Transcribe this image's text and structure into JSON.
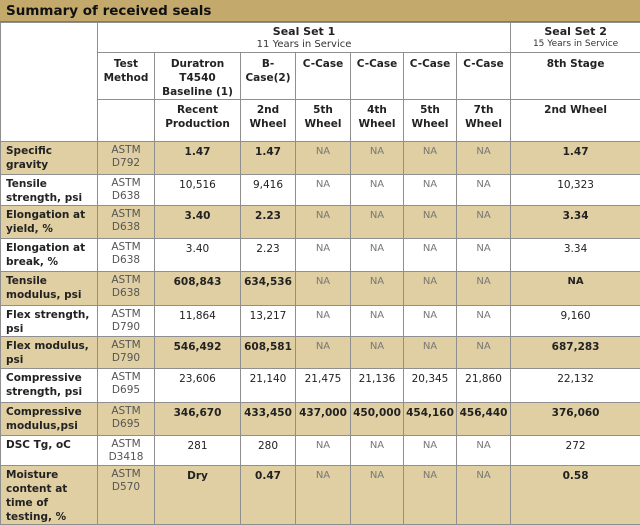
{
  "title": "Summary of received seals",
  "seal_set_1": {
    "name": "Seal Set 1",
    "sub": "11 Years in Service"
  },
  "seal_set_2": {
    "name": "Seal Set 2",
    "sub": "15 Years in Service"
  },
  "columns": [
    {
      "top": "Test Method",
      "bottom": ""
    },
    {
      "top": "Duratron T4540 Baseline (1)",
      "bottom": "Recent Production"
    },
    {
      "top": "B-Case(2)",
      "bottom": "2nd Wheel"
    },
    {
      "top": "C-Case",
      "bottom": "5th Wheel"
    },
    {
      "top": "C-Case",
      "bottom": "4th Wheel"
    },
    {
      "top": "C-Case",
      "bottom": "5th Wheel"
    },
    {
      "top": "C-Case",
      "bottom": "7th Wheel"
    },
    {
      "top": "8th Stage",
      "bottom": "2nd Wheel"
    }
  ],
  "rows": [
    {
      "label": "Specific gravity",
      "method": "ASTM D792",
      "values": [
        "1.47",
        "1.47",
        "NA",
        "NA",
        "NA",
        "NA",
        "1.47"
      ]
    },
    {
      "label": "Tensile strength, psi",
      "method": "ASTM D638",
      "values": [
        "10,516",
        "9,416",
        "NA",
        "NA",
        "NA",
        "NA",
        "10,323"
      ]
    },
    {
      "label": "Elongation at yield, %",
      "method": "ASTM D638",
      "values": [
        "3.40",
        "2.23",
        "NA",
        "NA",
        "NA",
        "NA",
        "3.34"
      ]
    },
    {
      "label": "Elongation at break, %",
      "method": "ASTM D638",
      "values": [
        "3.40",
        "2.23",
        "NA",
        "NA",
        "NA",
        "NA",
        "3.34"
      ]
    },
    {
      "label": "Tensile modulus, psi",
      "method": "ASTM D638",
      "values": [
        "608,843",
        "634,536",
        "NA",
        "NA",
        "NA",
        "NA",
        "NA"
      ]
    },
    {
      "label": "Flex strength, psi",
      "method": "ASTM D790",
      "values": [
        "11,864",
        "13,217",
        "NA",
        "NA",
        "NA",
        "NA",
        "9,160"
      ]
    },
    {
      "label": "Flex modulus, psi",
      "method": "ASTM D790",
      "values": [
        "546,492",
        "608,581",
        "NA",
        "NA",
        "NA",
        "NA",
        "687,283"
      ]
    },
    {
      "label": "Compressive strength, psi",
      "method": "ASTM D695",
      "values": [
        "23,606",
        "21,140",
        "21,475",
        "21,136",
        "20,345",
        "21,860",
        "22,132"
      ]
    },
    {
      "label": "Compressive modulus,psi",
      "method": "ASTM D695",
      "values": [
        "346,670",
        "433,450",
        "437,000",
        "450,000",
        "454,160",
        "456,440",
        "376,060"
      ]
    },
    {
      "label": "DSC Tg, oC",
      "method": "ASTM D3418",
      "values": [
        "281",
        "280",
        "NA",
        "NA",
        "NA",
        "NA",
        "272"
      ]
    },
    {
      "label": "Moisture content at time of testing, %",
      "method": "ASTM D570",
      "values": [
        "Dry",
        "0.47",
        "NA",
        "NA",
        "NA",
        "NA",
        "0.58"
      ]
    }
  ]
}
